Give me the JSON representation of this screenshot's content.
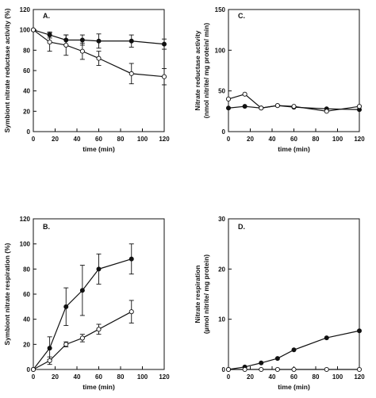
{
  "chart_data": [
    {
      "id": "A",
      "type": "line",
      "panel_label": "A.",
      "xlabel": "time (min)",
      "ylabel": "Symbiont nitrate reductase activity (%)",
      "ylabel_lines": [
        "Symbiont nitrate reductase activity (%)"
      ],
      "xlim": [
        0,
        120
      ],
      "ylim": [
        0,
        120
      ],
      "xticks": [
        0,
        20,
        40,
        60,
        80,
        100,
        120
      ],
      "yticks": [
        0,
        20,
        40,
        60,
        80,
        100,
        120
      ],
      "series": [
        {
          "marker": "filled",
          "x": [
            0,
            15,
            30,
            45,
            60,
            90,
            120
          ],
          "y": [
            100,
            95,
            90,
            90,
            89,
            89,
            86
          ],
          "err": [
            0,
            3,
            5,
            5,
            7,
            6,
            5
          ]
        },
        {
          "marker": "open",
          "x": [
            0,
            15,
            30,
            45,
            60,
            90,
            120
          ],
          "y": [
            100,
            88,
            85,
            79,
            72,
            57,
            54
          ],
          "err": [
            0,
            9,
            10,
            8,
            7,
            10,
            8
          ]
        }
      ]
    },
    {
      "id": "B",
      "type": "line",
      "panel_label": "B.",
      "xlabel": "time (min)",
      "ylabel": "Symbiont nitrate respiration (%)",
      "ylabel_lines": [
        "Symbiont nitrate respiration (%)"
      ],
      "xlim": [
        0,
        120
      ],
      "ylim": [
        0,
        120
      ],
      "xticks": [
        0,
        20,
        40,
        60,
        80,
        100,
        120
      ],
      "yticks": [
        0,
        20,
        40,
        60,
        80,
        100,
        120
      ],
      "series": [
        {
          "marker": "filled",
          "x": [
            0,
            15,
            30,
            45,
            60,
            90
          ],
          "y": [
            0,
            17,
            50,
            63,
            80,
            88
          ],
          "err": [
            0,
            9,
            15,
            20,
            12,
            12
          ]
        },
        {
          "marker": "open",
          "x": [
            0,
            15,
            30,
            45,
            60,
            90
          ],
          "y": [
            0,
            7,
            20,
            25,
            32,
            46
          ],
          "err": [
            0,
            3,
            2,
            3,
            4,
            9
          ]
        }
      ]
    },
    {
      "id": "C",
      "type": "line",
      "panel_label": "C.",
      "xlabel": "time (min)",
      "ylabel": "Nitrate reductase activity (nmol nitrite/ mg protein/ min)",
      "ylabel_lines": [
        "Nitrate reductase activity",
        "(nmol nitrite/ mg protein/ min)"
      ],
      "xlim": [
        0,
        120
      ],
      "ylim": [
        0,
        150
      ],
      "xticks": [
        0,
        20,
        40,
        60,
        80,
        100,
        120
      ],
      "yticks": [
        0,
        50,
        100,
        150
      ],
      "series": [
        {
          "marker": "filled",
          "x": [
            0,
            15,
            30,
            45,
            60,
            90,
            120
          ],
          "y": [
            29,
            31,
            29,
            32,
            30,
            28,
            27
          ],
          "err": []
        },
        {
          "marker": "open",
          "x": [
            0,
            15,
            30,
            45,
            60,
            90,
            120
          ],
          "y": [
            40,
            46,
            29,
            32,
            31,
            25,
            31
          ],
          "err": []
        }
      ]
    },
    {
      "id": "D",
      "type": "line",
      "panel_label": "D.",
      "xlabel": "time (min)",
      "ylabel": "Nitrate respiration (µmol nitrite/ mg protein)",
      "ylabel_lines": [
        "Nitrate respiration",
        "(µmol nitrite/ mg protein)"
      ],
      "xlim": [
        0,
        120
      ],
      "ylim": [
        0,
        30
      ],
      "xticks": [
        0,
        20,
        40,
        60,
        80,
        100,
        120
      ],
      "yticks": [
        0,
        10,
        20,
        30
      ],
      "series": [
        {
          "marker": "filled",
          "x": [
            0,
            15,
            30,
            45,
            60,
            90,
            120
          ],
          "y": [
            0,
            0.5,
            1.3,
            2.2,
            3.9,
            6.3,
            7.7
          ],
          "err": []
        },
        {
          "marker": "open",
          "x": [
            0,
            15,
            30,
            45,
            60,
            90,
            120
          ],
          "y": [
            0,
            0,
            0,
            0,
            0,
            0,
            0
          ],
          "err": []
        }
      ]
    }
  ]
}
